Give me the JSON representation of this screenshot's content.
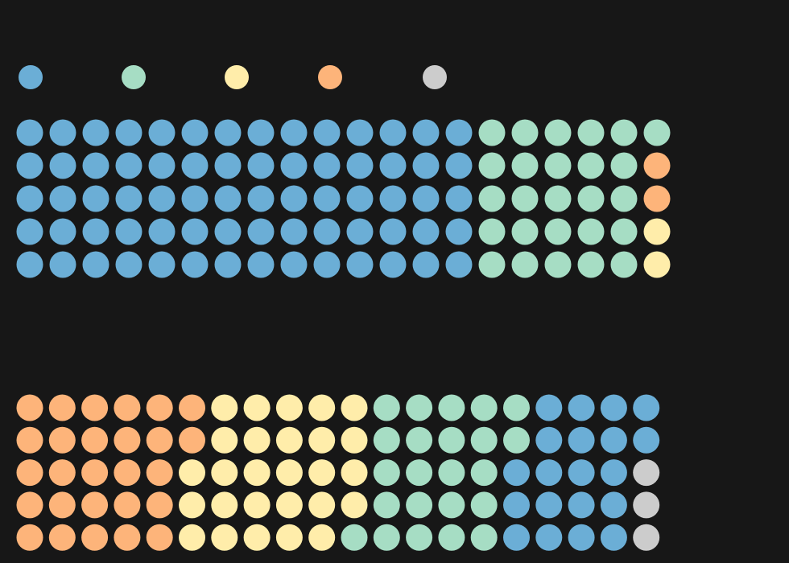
{
  "chart_data": [
    {
      "type": "waffle",
      "grid": {
        "rows": 5,
        "columns": 20
      },
      "fill_order": "column-major",
      "legend": {
        "position": "top-left",
        "labels_visible": false,
        "entries": [
          "a",
          "b",
          "c",
          "d",
          "e"
        ]
      },
      "series": [
        {
          "key": "a",
          "color": "#6BAED6",
          "count": 70
        },
        {
          "key": "b",
          "color": "#A6DDC4",
          "count": 26
        },
        {
          "key": "c",
          "color": "#FFEDAA",
          "count": 2
        },
        {
          "key": "d",
          "color": "#FDB47A",
          "count": 2
        },
        {
          "key": "e",
          "color": "#CCCCCC",
          "count": 0
        }
      ],
      "fill_sequence": [
        "a",
        "b",
        "d",
        "c"
      ]
    },
    {
      "type": "waffle",
      "grid": {
        "rows": 5,
        "columns": 20
      },
      "fill_order": "column-major",
      "series": [
        {
          "key": "d",
          "color": "#FDB47A",
          "count": 27
        },
        {
          "key": "c",
          "color": "#FFEDAA",
          "count": 27
        },
        {
          "key": "b",
          "color": "#A6DDC4",
          "count": 23
        },
        {
          "key": "a",
          "color": "#6BAED6",
          "count": 20
        },
        {
          "key": "e",
          "color": "#CCCCCC",
          "count": 3
        }
      ],
      "fill_sequence": [
        "d",
        "c",
        "b",
        "a",
        "e"
      ]
    }
  ],
  "colors": {
    "background": "#171717",
    "a": "#6BAED6",
    "b": "#A6DDC4",
    "c": "#FFEDAA",
    "d": "#FDB47A",
    "e": "#CCCCCC"
  }
}
